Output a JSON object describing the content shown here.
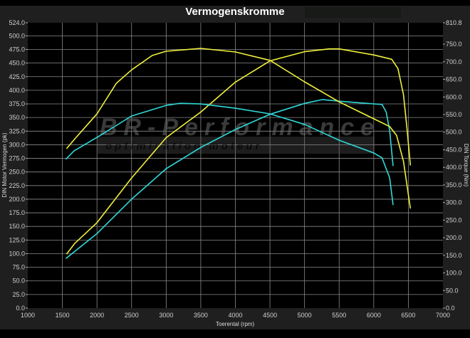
{
  "chart_data": {
    "type": "line",
    "title": "Vermogenskromme",
    "xlabel": "Toerental (rpm)",
    "ylabel_left": "DIN Motor Vermogen (pk)",
    "ylabel_right": "DIN Torque (Nm)",
    "xlim": [
      1000,
      7000
    ],
    "ylim_left": [
      0,
      524.0
    ],
    "ylim_right": [
      0,
      810.8
    ],
    "x_ticks": [
      "1000",
      "1500",
      "2000",
      "2500",
      "3000",
      "3500",
      "4000",
      "4500",
      "5000",
      "5500",
      "6000",
      "6500",
      "7000"
    ],
    "y_left_ticks": [
      "0.0",
      "25.0",
      "50.0",
      "75.0",
      "100.0",
      "125.0",
      "150.0",
      "175.0",
      "200.0",
      "225.0",
      "250.0",
      "275.0",
      "300.0",
      "325.0",
      "350.0",
      "375.0",
      "400.0",
      "425.0",
      "450.0",
      "475.0",
      "500.0",
      "524.0"
    ],
    "y_right_ticks": [
      "0.0",
      "50.0",
      "100.0",
      "150.0",
      "200.0",
      "250.0",
      "300.0",
      "350.0",
      "400.0",
      "450.0",
      "500.0",
      "550.0",
      "600.0",
      "650.0",
      "700.0",
      "750.0",
      "810.8"
    ],
    "grid": true,
    "series": [
      {
        "axis": "left",
        "color": "#f0f03c",
        "points": [
          [
            1560,
            99
          ],
          [
            1680,
            119
          ],
          [
            2000,
            157
          ],
          [
            2500,
            239
          ],
          [
            3000,
            313
          ],
          [
            3500,
            360
          ],
          [
            4000,
            415
          ],
          [
            4500,
            454
          ],
          [
            5000,
            471
          ],
          [
            5360,
            476
          ],
          [
            5500,
            476
          ],
          [
            6000,
            465
          ],
          [
            6260,
            457
          ],
          [
            6350,
            440
          ],
          [
            6430,
            392
          ],
          [
            6480,
            330
          ],
          [
            6530,
            262
          ]
        ]
      },
      {
        "axis": "left",
        "color": "#30d8d8",
        "points": [
          [
            1550,
            91
          ],
          [
            2000,
            137
          ],
          [
            2500,
            200
          ],
          [
            3000,
            256
          ],
          [
            3500,
            295
          ],
          [
            4000,
            328
          ],
          [
            4500,
            356
          ],
          [
            5000,
            376
          ],
          [
            5260,
            383
          ],
          [
            5500,
            380
          ],
          [
            6000,
            375
          ],
          [
            6120,
            374
          ],
          [
            6180,
            360
          ],
          [
            6230,
            326
          ],
          [
            6280,
            261
          ]
        ]
      },
      {
        "axis": "right",
        "color": "#f0f03c",
        "points": [
          [
            1560,
            453
          ],
          [
            1680,
            481
          ],
          [
            2000,
            552
          ],
          [
            2280,
            639
          ],
          [
            2500,
            677
          ],
          [
            2800,
            718
          ],
          [
            3000,
            730
          ],
          [
            3500,
            738
          ],
          [
            4000,
            728
          ],
          [
            4500,
            704
          ],
          [
            5000,
            643
          ],
          [
            5500,
            586
          ],
          [
            6000,
            538
          ],
          [
            6230,
            516
          ],
          [
            6330,
            491
          ],
          [
            6430,
            417
          ],
          [
            6530,
            283
          ]
        ]
      },
      {
        "axis": "right",
        "color": "#30d8d8",
        "points": [
          [
            1550,
            423
          ],
          [
            1670,
            447
          ],
          [
            2000,
            485
          ],
          [
            2500,
            546
          ],
          [
            3000,
            576
          ],
          [
            3200,
            582
          ],
          [
            3500,
            580
          ],
          [
            4000,
            568
          ],
          [
            4500,
            552
          ],
          [
            5000,
            522
          ],
          [
            5500,
            477
          ],
          [
            6000,
            441
          ],
          [
            6120,
            427
          ],
          [
            6230,
            370
          ],
          [
            6280,
            293
          ]
        ]
      }
    ]
  },
  "watermark": {
    "brand": "BR-Performance",
    "tagline": "optimisation moteur"
  }
}
